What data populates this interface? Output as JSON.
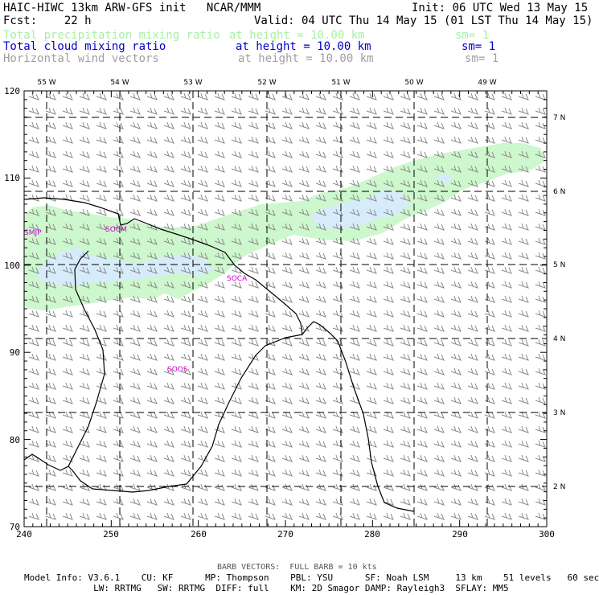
{
  "header": {
    "title_left": "HAIC-HIWC 13km ARW-GFS init   NCAR/MMM",
    "init": "Init: 06 UTC Wed 13 May 15",
    "fcst": "Fcst:    22 h",
    "valid": "Valid: 04 UTC Thu 14 May 15 (01 LST Thu 14 May 15)",
    "fields": [
      {
        "name": "Total precipitation mixing ratio",
        "height": "at height = 10.00 km",
        "sm": "sm= 1",
        "color": "#a6f0a6"
      },
      {
        "name": "Total cloud mixing ratio",
        "height": "at height = 10.00 km",
        "sm": "sm= 1",
        "color": "#0000cc"
      },
      {
        "name": "Horizontal wind vectors",
        "height": "at height = 10.00 km",
        "sm": "sm= 1",
        "color": "#a0a0a0"
      }
    ]
  },
  "map": {
    "x_ticks": [
      "240",
      "250",
      "260",
      "270",
      "280",
      "290",
      "300"
    ],
    "y_ticks": [
      "70",
      "80",
      "90",
      "100",
      "110",
      "120"
    ],
    "lon_labels": [
      "55 W",
      "54 W",
      "53 W",
      "52 W",
      "51 W",
      "50 W",
      "49 W"
    ],
    "lat_labels": [
      "7 N",
      "6 N",
      "5 N",
      "4 N",
      "3 N",
      "2 N"
    ],
    "stations": [
      {
        "id": "SMJP"
      },
      {
        "id": "SOCM"
      },
      {
        "id": "SOCA"
      },
      {
        "id": "SOOS"
      }
    ],
    "colors": {
      "precip": "#cdf7cd",
      "cloud": "#d6ecfb",
      "barb": "#8c8c8c",
      "station": "#cc00cc",
      "coast": "#000000"
    }
  },
  "footer": {
    "barb_note": "BARB VECTORS:  FULL BARB = 10 kts",
    "line1": "Model Info: V3.6.1    CU: KF      MP: Thompson    PBL: YSU      SF: Noah LSM     13 km    51 levels   60 sec",
    "line2": "             LW: RRTMG   SW: RRTMG  DIFF: full    KM: 2D Smagor DAMP: Rayleigh3  SFLAY: MM5"
  }
}
